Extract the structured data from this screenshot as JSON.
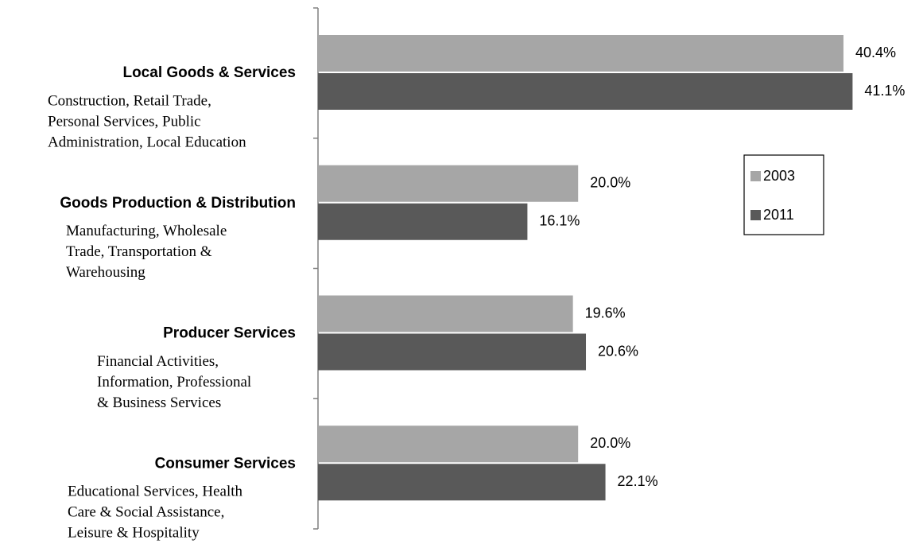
{
  "chart_data": {
    "type": "hbar",
    "categories": [
      "Local Goods & Services",
      "Goods Production & Distribution",
      "Producer Services",
      "Consumer Services"
    ],
    "descriptions": [
      [
        "Construction, Retail Trade,",
        "Personal Services, Public",
        "Administration, Local Education"
      ],
      [
        "Manufacturing, Wholesale",
        "Trade, Transportation &",
        "Warehousing"
      ],
      [
        "Financial Activities,",
        "Information, Professional",
        "& Business Services"
      ],
      [
        "Educational Services, Health",
        "Care & Social Assistance,",
        "Leisure & Hospitality"
      ]
    ],
    "series": [
      {
        "name": "2003",
        "color": "#a6a6a6",
        "values": [
          40.4,
          20.0,
          19.6,
          20.0
        ],
        "value_labels": [
          "40.4%",
          "20.0%",
          "19.6%",
          "20.0%"
        ]
      },
      {
        "name": "2011",
        "color": "#595959",
        "values": [
          41.1,
          16.1,
          20.6,
          22.1
        ],
        "value_labels": [
          "41.1%",
          "16.1%",
          "20.6%",
          "22.1%"
        ]
      }
    ],
    "xlim": [
      0,
      46
    ],
    "legend": "right"
  }
}
